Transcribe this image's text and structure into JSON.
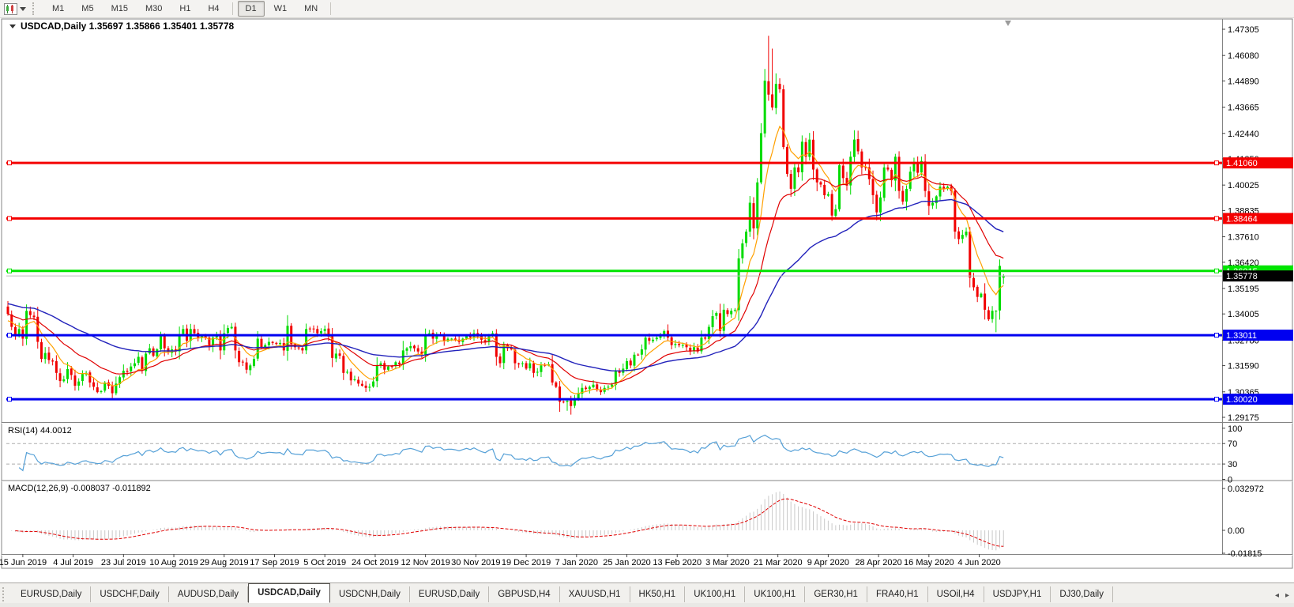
{
  "window": {
    "symbol_label": "USDCAD,Daily",
    "ohlc_display": {
      "open": "1.35697",
      "high": "1.35866",
      "low": "1.35401",
      "close": "1.35778"
    }
  },
  "toolbar": {
    "timeframes": [
      "M1",
      "M5",
      "M15",
      "M30",
      "H1",
      "H4",
      "D1",
      "W1",
      "MN"
    ],
    "active_timeframe": "D1",
    "group_breaks_after": [
      "H4",
      "MN"
    ]
  },
  "price_axis": {
    "ticks": [
      "1.47305",
      "1.46080",
      "1.44890",
      "1.43665",
      "1.42440",
      "1.41250",
      "1.40025",
      "1.38835",
      "1.37610",
      "1.36420",
      "1.35195",
      "1.34005",
      "1.32780",
      "1.31590",
      "1.30365",
      "1.29175"
    ],
    "top_value": 1.47305,
    "bottom_value": 1.29175
  },
  "hlines": [
    {
      "value": 1.4106,
      "label": "1.41060",
      "color": "#f40000",
      "thickness": 3
    },
    {
      "value": 1.38464,
      "label": "1.38464",
      "color": "#f40000",
      "thickness": 3
    },
    {
      "value": 1.36015,
      "label": "1.36015",
      "color": "#00e400",
      "thickness": 3
    },
    {
      "value": 1.33011,
      "label": "1.33011",
      "color": "#0000f0",
      "thickness": 3
    },
    {
      "value": 1.3002,
      "label": "1.30020",
      "color": "#0000f0",
      "thickness": 3
    }
  ],
  "current_price": {
    "value": 1.35778,
    "label": "1.35778",
    "line_color": "#bebebe",
    "label_bg": "#000000"
  },
  "date_axis": [
    "15 Jun 2019",
    "4 Jul 2019",
    "23 Jul 2019",
    "10 Aug 2019",
    "29 Aug 2019",
    "17 Sep 2019",
    "5 Oct 2019",
    "24 Oct 2019",
    "12 Nov 2019",
    "30 Nov 2019",
    "19 Dec 2019",
    "7 Jan 2020",
    "25 Jan 2020",
    "13 Feb 2020",
    "3 Mar 2020",
    "21 Mar 2020",
    "9 Apr 2020",
    "28 Apr 2020",
    "16 May 2020",
    "4 Jun 2020"
  ],
  "rsi_panel": {
    "label": "RSI(14) 44.0012",
    "period": 14,
    "value": 44.0012,
    "axis_ticks": [
      "100",
      "70",
      "30",
      "0"
    ],
    "line_color": "#55a0d7",
    "level_high": 70,
    "level_low": 30
  },
  "macd_panel": {
    "label": "MACD(12,26,9) -0.008037 -0.011892",
    "macd_value": -0.008037,
    "signal_value": -0.011892,
    "axis_ticks": [
      "0.032972",
      "0.00",
      "-0.01815"
    ],
    "axis_max": 0.032972,
    "axis_min": -0.01815,
    "histogram_color": "#c9c9c9",
    "signal_color": "#e00000"
  },
  "chart_data": {
    "type": "candlestick",
    "symbol": "USDCAD",
    "timeframe": "Daily",
    "bull_color": "#00db00",
    "bear_color": "#f10000",
    "first_open": 1.3435,
    "closes": [
      1.34,
      1.334,
      1.33,
      1.333,
      1.3285,
      1.3415,
      1.3395,
      1.3385,
      1.327,
      1.319,
      1.3218,
      1.3185,
      1.3178,
      1.3125,
      1.3087,
      1.3095,
      1.3143,
      1.3115,
      1.3065,
      1.3085,
      1.312,
      1.3125,
      1.308,
      1.306,
      1.3035,
      1.304,
      1.308,
      1.3065,
      1.303,
      1.3075,
      1.3105,
      1.3135,
      1.313,
      1.3155,
      1.317,
      1.32,
      1.3135,
      1.3215,
      1.324,
      1.3205,
      1.3235,
      1.33,
      1.324,
      1.322,
      1.3235,
      1.3225,
      1.3305,
      1.333,
      1.3275,
      1.333,
      1.331,
      1.329,
      1.33,
      1.329,
      1.3255,
      1.329,
      1.33,
      1.323,
      1.331,
      1.3335,
      1.334,
      1.323,
      1.3175,
      1.3175,
      1.314,
      1.316,
      1.319,
      1.3285,
      1.3245,
      1.3255,
      1.327,
      1.3265,
      1.326,
      1.3265,
      1.323,
      1.3345,
      1.326,
      1.3245,
      1.324,
      1.323,
      1.333,
      1.333,
      1.333,
      1.331,
      1.332,
      1.333,
      1.3295,
      1.3195,
      1.3215,
      1.3205,
      1.3125,
      1.313,
      1.309,
      1.3095,
      1.3075,
      1.3065,
      1.3055,
      1.306,
      1.3085,
      1.316,
      1.317,
      1.314,
      1.3155,
      1.3155,
      1.3175,
      1.3165,
      1.323,
      1.324,
      1.325,
      1.324,
      1.3225,
      1.321,
      1.3305,
      1.331,
      1.3285,
      1.33,
      1.33,
      1.3275,
      1.3285,
      1.3285,
      1.328,
      1.327,
      1.3285,
      1.33,
      1.329,
      1.331,
      1.3295,
      1.328,
      1.327,
      1.3295,
      1.331,
      1.32,
      1.317,
      1.3255,
      1.324,
      1.3235,
      1.317,
      1.3165,
      1.317,
      1.3145,
      1.317,
      1.3125,
      1.313,
      1.316,
      1.316,
      1.3165,
      1.308,
      1.306,
      1.299,
      1.299,
      1.2995,
      1.297,
      1.3,
      1.303,
      1.3055,
      1.305,
      1.306,
      1.307,
      1.3045,
      1.3035,
      1.3055,
      1.306,
      1.307,
      1.3135,
      1.3125,
      1.3145,
      1.318,
      1.316,
      1.321,
      1.321,
      1.3235,
      1.329,
      1.3275,
      1.328,
      1.329,
      1.3305,
      1.332,
      1.329,
      1.3255,
      1.326,
      1.3255,
      1.3255,
      1.3245,
      1.3225,
      1.3245,
      1.3225,
      1.329,
      1.3285,
      1.334,
      1.339,
      1.3405,
      1.332,
      1.342,
      1.34,
      1.3415,
      1.342,
      1.366,
      1.373,
      1.3785,
      1.392,
      1.38,
      1.4015,
      1.4245,
      1.449,
      1.4425,
      1.4365,
      1.4475,
      1.445,
      1.418,
      1.4055,
      1.3985,
      1.4085,
      1.4062,
      1.4205,
      1.4135,
      1.4215,
      1.4075,
      1.4015,
      1.4005,
      1.3955,
      1.396,
      1.386,
      1.389,
      1.4095,
      1.4035,
      1.4,
      1.4135,
      1.4215,
      1.416,
      1.4085,
      1.4085,
      1.403,
      1.3955,
      1.3875,
      1.3945,
      1.4085,
      1.4075,
      1.4025,
      1.4135,
      1.3975,
      1.3925,
      1.3985,
      1.4065,
      1.4105,
      1.406,
      1.4115,
      1.3975,
      1.3905,
      1.392,
      1.395,
      1.3995,
      1.3985,
      1.3995,
      1.3975,
      1.3785,
      1.375,
      1.377,
      1.3785,
      1.357,
      1.3525,
      1.348,
      1.3495,
      1.342,
      1.3375,
      1.3415,
      1.3415,
      1.3625,
      1.35778
    ],
    "wick_overrides": {
      "28": {
        "l": 1.3008
      },
      "150": {
        "l": 1.2948
      },
      "151": {
        "l": 1.293
      },
      "203": {
        "h": 1.4545
      },
      "204": {
        "h": 1.47
      },
      "205": {
        "h": 1.464
      },
      "265": {
        "l": 1.3315
      },
      "266": {
        "h": 1.3655
      }
    },
    "current_candle": {
      "open": 1.35697,
      "high": 1.35866,
      "low": 1.35401,
      "close": 1.35778
    },
    "moving_averages": [
      {
        "period": 8,
        "color": "#ffa000",
        "seed": 1.336
      },
      {
        "period": 21,
        "color": "#e00000",
        "seed": 1.34
      },
      {
        "period": 55,
        "color": "#2222bb",
        "seed": 1.345
      }
    ]
  },
  "tabbar": {
    "tabs": [
      "EURUSD,Daily",
      "USDCHF,Daily",
      "AUDUSD,Daily",
      "USDCAD,Daily",
      "USDCNH,Daily",
      "EURUSD,Daily",
      "GBPUSD,H4",
      "XAUUSD,H1",
      "HK50,H1",
      "UK100,H1",
      "UK100,H1",
      "GER30,H1",
      "FRA40,H1",
      "USOil,H4",
      "USDJPY,H1",
      "DJ30,Daily"
    ],
    "active_index": 3,
    "scroll_left": "◂",
    "scroll_right": "▸"
  }
}
